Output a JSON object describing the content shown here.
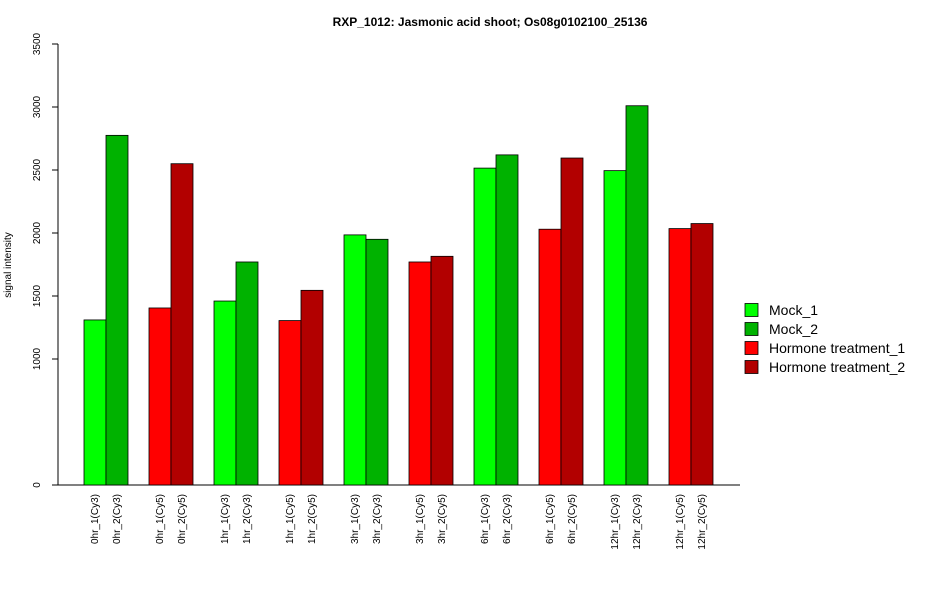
{
  "chart_data": {
    "type": "bar",
    "title": "RXP_1012: Jasmonic acid shoot; Os08g0102100_25136",
    "ylabel": "signal intensity",
    "xlabel": "",
    "ylim": [
      0,
      3500
    ],
    "yticks": [
      0,
      1000,
      1500,
      2000,
      2500,
      3000,
      3500
    ],
    "grid": false,
    "legend_position": "right",
    "legend": [
      {
        "name": "Mock_1",
        "color": "#00FF00"
      },
      {
        "name": "Mock_2",
        "color": "#00B200"
      },
      {
        "name": "Hormone treatment_1",
        "color": "#FF0000"
      },
      {
        "name": "Hormone treatment_2",
        "color": "#B20000"
      }
    ],
    "groups": [
      {
        "bars": [
          {
            "label": "0hr_1(Cy3)",
            "value": 1310,
            "color": "#00FF00"
          },
          {
            "label": "0hr_2(Cy3)",
            "value": 2775,
            "color": "#00B200"
          }
        ]
      },
      {
        "bars": [
          {
            "label": "0hr_1(Cy5)",
            "value": 1405,
            "color": "#FF0000"
          },
          {
            "label": "0hr_2(Cy5)",
            "value": 2550,
            "color": "#B20000"
          }
        ]
      },
      {
        "bars": [
          {
            "label": "1hr_1(Cy3)",
            "value": 1460,
            "color": "#00FF00"
          },
          {
            "label": "1hr_2(Cy3)",
            "value": 1770,
            "color": "#00B200"
          }
        ]
      },
      {
        "bars": [
          {
            "label": "1hr_1(Cy5)",
            "value": 1305,
            "color": "#FF0000"
          },
          {
            "label": "1hr_2(Cy5)",
            "value": 1545,
            "color": "#B20000"
          }
        ]
      },
      {
        "bars": [
          {
            "label": "3hr_1(Cy3)",
            "value": 1985,
            "color": "#00FF00"
          },
          {
            "label": "3hr_2(Cy3)",
            "value": 1950,
            "color": "#00B200"
          }
        ]
      },
      {
        "bars": [
          {
            "label": "3hr_1(Cy5)",
            "value": 1770,
            "color": "#FF0000"
          },
          {
            "label": "3hr_2(Cy5)",
            "value": 1815,
            "color": "#B20000"
          }
        ]
      },
      {
        "bars": [
          {
            "label": "6hr_1(Cy3)",
            "value": 2515,
            "color": "#00FF00"
          },
          {
            "label": "6hr_2(Cy3)",
            "value": 2620,
            "color": "#00B200"
          }
        ]
      },
      {
        "bars": [
          {
            "label": "6hr_1(Cy5)",
            "value": 2030,
            "color": "#FF0000"
          },
          {
            "label": "6hr_2(Cy5)",
            "value": 2595,
            "color": "#B20000"
          }
        ]
      },
      {
        "bars": [
          {
            "label": "12hr_1(Cy3)",
            "value": 2495,
            "color": "#00FF00"
          },
          {
            "label": "12hr_2(Cy3)",
            "value": 3010,
            "color": "#00B200"
          }
        ]
      },
      {
        "bars": [
          {
            "label": "12hr_1(Cy5)",
            "value": 2035,
            "color": "#FF0000"
          },
          {
            "label": "12hr_2(Cy5)",
            "value": 2075,
            "color": "#B20000"
          }
        ]
      }
    ]
  }
}
